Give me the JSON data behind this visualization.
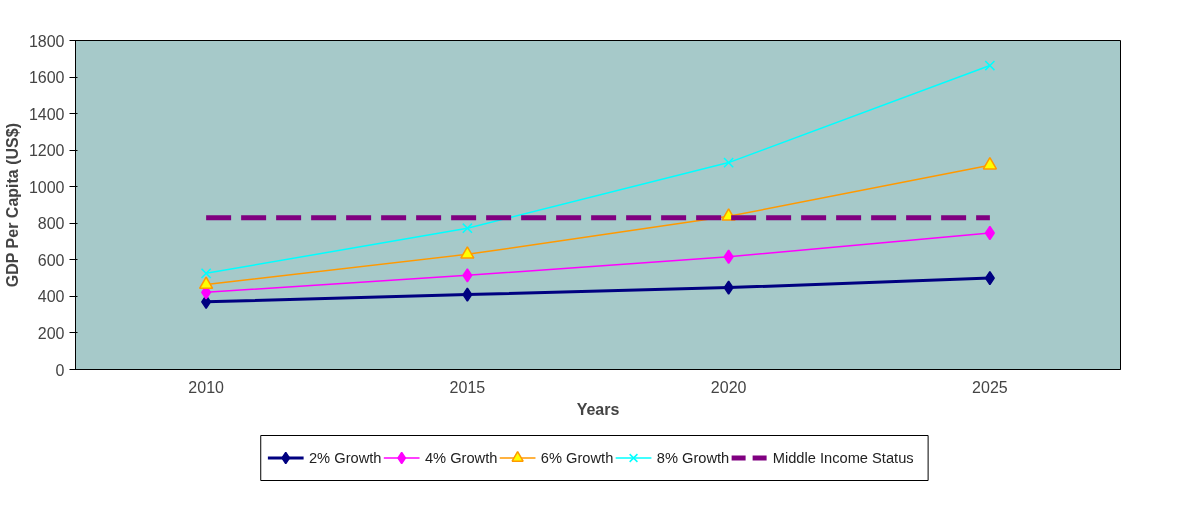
{
  "chart_data": {
    "type": "line",
    "xlabel": "Years",
    "ylabel": "GDP Per Capita (US$)",
    "categories": [
      "2010",
      "2015",
      "2020",
      "2025"
    ],
    "series": [
      {
        "name": "2% Growth",
        "color": "#000080",
        "marker": "diamond",
        "values": [
          370,
          410,
          448,
          500
        ]
      },
      {
        "name": "4% Growth",
        "color": "#ff00ff",
        "marker": "diamond",
        "values": [
          422,
          515,
          617,
          747
        ]
      },
      {
        "name": "6% Growth",
        "color": "#ff9900",
        "marker": "triangle",
        "values": [
          465,
          630,
          838,
          1118
        ]
      },
      {
        "name": "8% Growth",
        "color": "#00ffff",
        "marker": "cross",
        "values": [
          526,
          773,
          1132,
          1663
        ]
      },
      {
        "name": "Middle Income Status",
        "color": "#800080",
        "marker": "none",
        "line_style": "dashed",
        "values": [
          830,
          830,
          830,
          830
        ]
      }
    ],
    "ylim": [
      0,
      1800
    ],
    "yticks": [
      0,
      200,
      400,
      600,
      800,
      1000,
      1200,
      1400,
      1600,
      1800
    ],
    "grid": false,
    "legend": "bottom"
  }
}
